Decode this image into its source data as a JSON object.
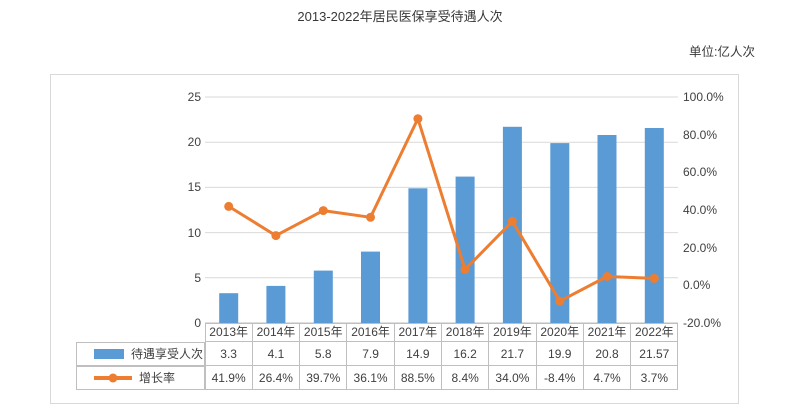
{
  "title": "2013-2022年居民医保享受待遇人次",
  "unit_label": "单位:亿人次",
  "colors": {
    "bar": "#5B9BD5",
    "line": "#ED7D31",
    "grid": "#D9D9D9",
    "axis_line": "#BFBFBF",
    "table_border": "#BFBFBF",
    "box_border": "#D9D9D9",
    "text": "#404040"
  },
  "chart_data": {
    "type": "combo",
    "title": "2013-2022年居民医保享受待遇人次",
    "categories": [
      "2013年",
      "2014年",
      "2015年",
      "2016年",
      "2017年",
      "2018年",
      "2019年",
      "2020年",
      "2021年",
      "2022年"
    ],
    "series": [
      {
        "name": "待遇享受人次",
        "type": "bar",
        "axis": "left",
        "values": [
          3.3,
          4.1,
          5.8,
          7.9,
          14.9,
          16.2,
          21.7,
          19.9,
          20.8,
          21.57
        ],
        "labels": [
          "3.3",
          "4.1",
          "5.8",
          "7.9",
          "14.9",
          "16.2",
          "21.7",
          "19.9",
          "20.8",
          "21.57"
        ]
      },
      {
        "name": "增长率",
        "type": "line",
        "axis": "right",
        "values": [
          41.9,
          26.4,
          39.7,
          36.1,
          88.5,
          8.4,
          34.0,
          -8.4,
          4.7,
          3.7
        ],
        "labels": [
          "41.9%",
          "26.4%",
          "39.7%",
          "36.1%",
          "88.5%",
          "8.4%",
          "34.0%",
          "-8.4%",
          "4.7%",
          "3.7%"
        ]
      }
    ],
    "left_axis": {
      "min": 0,
      "max": 25,
      "step": 5,
      "ticks": [
        "25",
        "20",
        "15",
        "10",
        "5",
        "0"
      ]
    },
    "right_axis": {
      "min": -20,
      "max": 100,
      "step": 20,
      "ticks": [
        "100.0%",
        "80.0%",
        "60.0%",
        "40.0%",
        "20.0%",
        "0.0%",
        "-20.0%"
      ]
    },
    "grid": true,
    "legend_position": "table-left"
  }
}
